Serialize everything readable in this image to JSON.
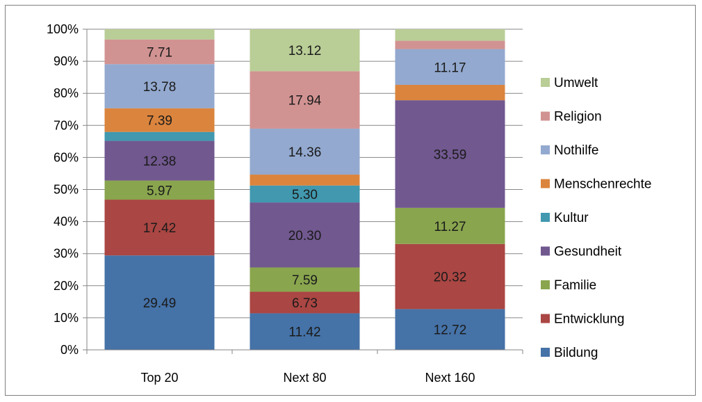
{
  "chart_data": {
    "type": "bar",
    "stacked": true,
    "percent_stacked": true,
    "categories": [
      "Top 20",
      "Next 80",
      "Next 160"
    ],
    "series": [
      {
        "name": "Bildung",
        "color": "#4572A7",
        "values": [
          29.49,
          11.42,
          12.72
        ],
        "labels": [
          "29.49",
          "11.42",
          "12.72"
        ]
      },
      {
        "name": "Entwicklung",
        "color": "#AA4643",
        "values": [
          17.42,
          6.73,
          20.32
        ],
        "labels": [
          "17.42",
          "6.73",
          "20.32"
        ]
      },
      {
        "name": "Familie",
        "color": "#89A54E",
        "values": [
          5.97,
          7.59,
          11.27
        ],
        "labels": [
          "5.97",
          "7.59",
          "11.27"
        ]
      },
      {
        "name": "Gesundheit",
        "color": "#71588F",
        "values": [
          12.38,
          20.3,
          33.59
        ],
        "labels": [
          "12.38",
          "20.30",
          "33.59"
        ]
      },
      {
        "name": "Kultur",
        "color": "#4198AF",
        "values": [
          2.8,
          5.3,
          0.0
        ],
        "labels": [
          "",
          "5.30",
          ""
        ]
      },
      {
        "name": "Menschenrechte",
        "color": "#DB843D",
        "values": [
          7.39,
          3.4,
          4.8
        ],
        "labels": [
          "7.39",
          "",
          ""
        ]
      },
      {
        "name": "Nothilfe",
        "color": "#93A9CF",
        "values": [
          13.78,
          14.36,
          11.17
        ],
        "labels": [
          "13.78",
          "14.36",
          "11.17"
        ]
      },
      {
        "name": "Religion",
        "color": "#D19392",
        "values": [
          7.71,
          17.94,
          2.6
        ],
        "labels": [
          "7.71",
          "17.94",
          ""
        ]
      },
      {
        "name": "Umwelt",
        "color": "#B9CD96",
        "values": [
          3.2,
          13.12,
          3.6
        ],
        "labels": [
          "",
          "13.12",
          ""
        ]
      }
    ],
    "ylim": [
      0,
      100
    ],
    "y_ticks": [
      "0%",
      "10%",
      "20%",
      "30%",
      "40%",
      "50%",
      "60%",
      "70%",
      "80%",
      "90%",
      "100%"
    ],
    "grid": true,
    "legend_position": "right",
    "title": "",
    "xlabel": "",
    "ylabel": ""
  }
}
